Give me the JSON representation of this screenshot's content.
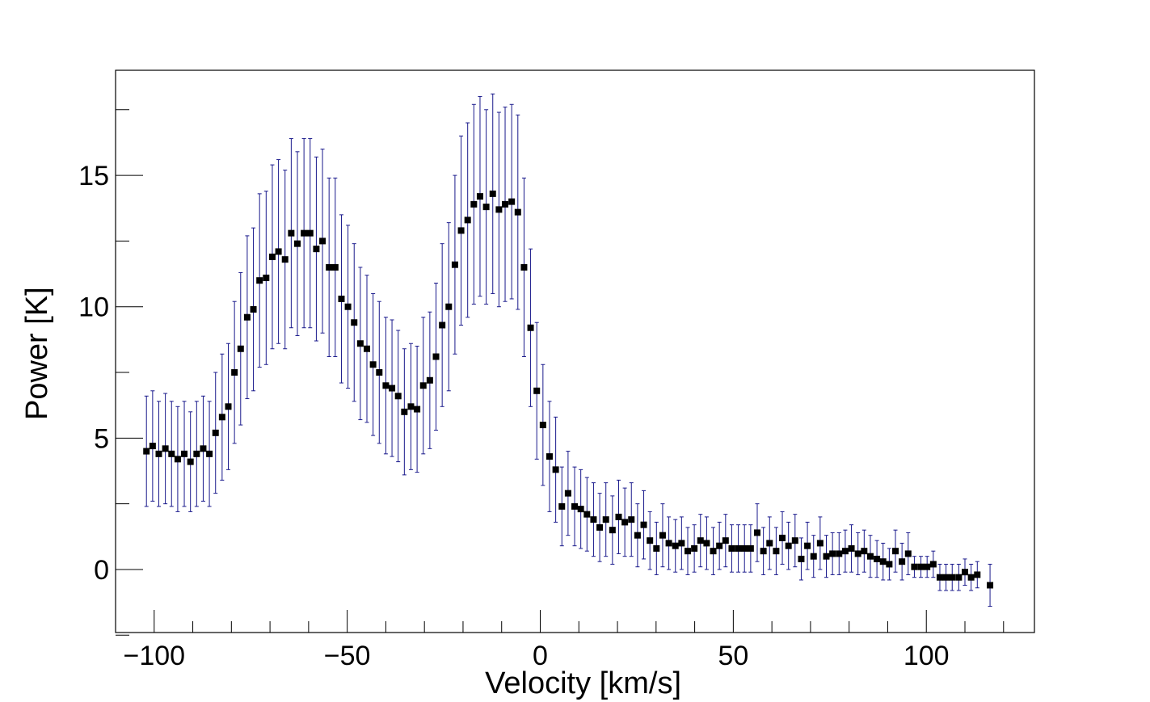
{
  "chart_data": {
    "type": "scatter",
    "title": "",
    "xlabel": "Velocity [km/s]",
    "ylabel": "Power [K]",
    "xlim": [
      -110,
      128
    ],
    "ylim": [
      -2.4,
      19
    ],
    "x_ticks": [
      -100,
      -50,
      0,
      50,
      100
    ],
    "x_tick_labels": [
      "−100",
      "−50",
      "0",
      "50",
      "100"
    ],
    "y_ticks": [
      0,
      5,
      10,
      15
    ],
    "y_tick_labels": [
      "0",
      "5",
      "10",
      "15"
    ],
    "grid": false,
    "legend": "none",
    "marker_color": "#000000",
    "errorbar_color": "#1a1a8c",
    "series": [
      {
        "x": [
          -102.0,
          -100.4,
          -98.8,
          -97.1,
          -95.5,
          -93.9,
          -92.2,
          -90.6,
          -89.0,
          -87.3,
          -85.7,
          -84.1,
          -82.4,
          -80.8,
          -79.2,
          -77.6,
          -75.9,
          -74.3,
          -72.7,
          -71.0,
          -69.4,
          -67.8,
          -66.1,
          -64.5,
          -62.9,
          -61.2,
          -59.6,
          -58.0,
          -56.4,
          -54.7,
          -53.1,
          -51.5,
          -49.8,
          -48.2,
          -46.6,
          -44.9,
          -43.3,
          -41.7,
          -40.0,
          -38.4,
          -36.8,
          -35.2,
          -33.5,
          -31.9,
          -30.3,
          -28.6,
          -27.0,
          -25.4,
          -23.7,
          -22.1,
          -20.5,
          -18.8,
          -17.2,
          -15.6,
          -14.0,
          -12.3,
          -10.7,
          -9.1,
          -7.4,
          -5.8,
          -4.2,
          -2.5,
          -0.9,
          0.7,
          2.4,
          4.0,
          5.6,
          7.2,
          8.9,
          10.5,
          12.1,
          13.8,
          15.4,
          17.0,
          18.7,
          20.3,
          21.9,
          23.6,
          25.2,
          26.8,
          28.4,
          30.1,
          31.7,
          33.3,
          35.0,
          36.6,
          38.2,
          39.9,
          41.5,
          43.1,
          44.8,
          46.4,
          48.0,
          49.6,
          51.3,
          52.9,
          54.5,
          56.2,
          57.8,
          59.4,
          61.1,
          62.7,
          64.3,
          66.0,
          67.6,
          69.2,
          70.8,
          72.5,
          74.1,
          75.7,
          77.4,
          79.0,
          80.6,
          82.3,
          83.9,
          85.5,
          87.2,
          88.8,
          90.4,
          92.0,
          93.7,
          95.3,
          96.9,
          98.6,
          100.2,
          101.8,
          103.5,
          105.1,
          106.7,
          108.4,
          110.0,
          111.6,
          113.2,
          116.5
        ],
        "y": [
          4.5,
          4.7,
          4.4,
          4.6,
          4.4,
          4.2,
          4.4,
          4.1,
          4.4,
          4.6,
          4.4,
          5.2,
          5.8,
          6.2,
          7.5,
          8.4,
          9.6,
          9.9,
          11.0,
          11.1,
          11.9,
          12.1,
          11.8,
          12.8,
          12.4,
          12.8,
          12.8,
          12.2,
          12.5,
          11.5,
          11.5,
          10.3,
          10.0,
          9.4,
          8.6,
          8.4,
          7.8,
          7.5,
          7.0,
          6.9,
          6.6,
          6.0,
          6.2,
          6.1,
          7.0,
          7.2,
          8.1,
          9.3,
          10.0,
          11.6,
          12.9,
          13.3,
          13.9,
          14.2,
          13.8,
          14.3,
          13.7,
          13.9,
          14.0,
          13.6,
          11.5,
          9.2,
          6.8,
          5.5,
          4.3,
          3.8,
          2.4,
          2.9,
          2.4,
          2.3,
          2.1,
          1.9,
          1.6,
          1.9,
          1.5,
          2.0,
          1.8,
          1.9,
          1.3,
          1.7,
          1.1,
          0.8,
          1.3,
          1.0,
          0.9,
          1.0,
          0.7,
          0.8,
          1.1,
          1.0,
          0.7,
          0.9,
          1.1,
          0.8,
          0.8,
          0.8,
          0.8,
          1.4,
          0.7,
          1.0,
          0.7,
          1.2,
          0.9,
          1.1,
          0.4,
          0.9,
          0.5,
          1.0,
          0.5,
          0.6,
          0.6,
          0.7,
          0.8,
          0.6,
          0.7,
          0.5,
          0.4,
          0.3,
          0.2,
          0.7,
          0.3,
          0.6,
          0.1,
          0.1,
          0.1,
          0.2,
          -0.3,
          -0.3,
          -0.3,
          -0.3,
          -0.1,
          -0.3,
          -0.2,
          -0.6
        ],
        "err": [
          2.1,
          2.1,
          2.0,
          2.1,
          2.0,
          2.0,
          2.0,
          1.9,
          2.0,
          2.0,
          2.0,
          2.3,
          2.4,
          2.4,
          2.7,
          2.9,
          3.1,
          3.1,
          3.3,
          3.3,
          3.5,
          3.5,
          3.4,
          3.6,
          3.5,
          3.6,
          3.6,
          3.5,
          3.5,
          3.4,
          3.4,
          3.2,
          3.1,
          3.0,
          2.9,
          2.8,
          2.7,
          2.7,
          2.6,
          2.6,
          2.5,
          2.4,
          2.4,
          2.4,
          2.6,
          2.6,
          2.8,
          3.1,
          3.2,
          3.4,
          3.6,
          3.7,
          3.8,
          3.8,
          3.7,
          3.8,
          3.7,
          3.7,
          3.7,
          3.7,
          3.4,
          3.0,
          2.6,
          2.3,
          2.1,
          2.0,
          1.5,
          1.6,
          1.5,
          1.5,
          1.4,
          1.4,
          1.3,
          1.4,
          1.3,
          1.4,
          1.3,
          1.4,
          1.2,
          1.3,
          1.1,
          1.0,
          1.2,
          1.0,
          1.0,
          1.0,
          0.9,
          0.9,
          1.0,
          1.0,
          0.9,
          0.9,
          1.0,
          0.9,
          0.9,
          0.9,
          0.9,
          1.1,
          0.9,
          1.0,
          0.9,
          1.0,
          0.9,
          1.0,
          0.8,
          0.9,
          0.8,
          1.0,
          0.8,
          0.8,
          0.8,
          0.8,
          0.9,
          0.8,
          0.8,
          0.8,
          0.7,
          0.7,
          0.6,
          0.8,
          0.7,
          0.8,
          0.4,
          0.4,
          0.4,
          0.5,
          0.5,
          0.5,
          0.5,
          0.5,
          0.5,
          0.5,
          0.5,
          0.8
        ]
      }
    ]
  }
}
